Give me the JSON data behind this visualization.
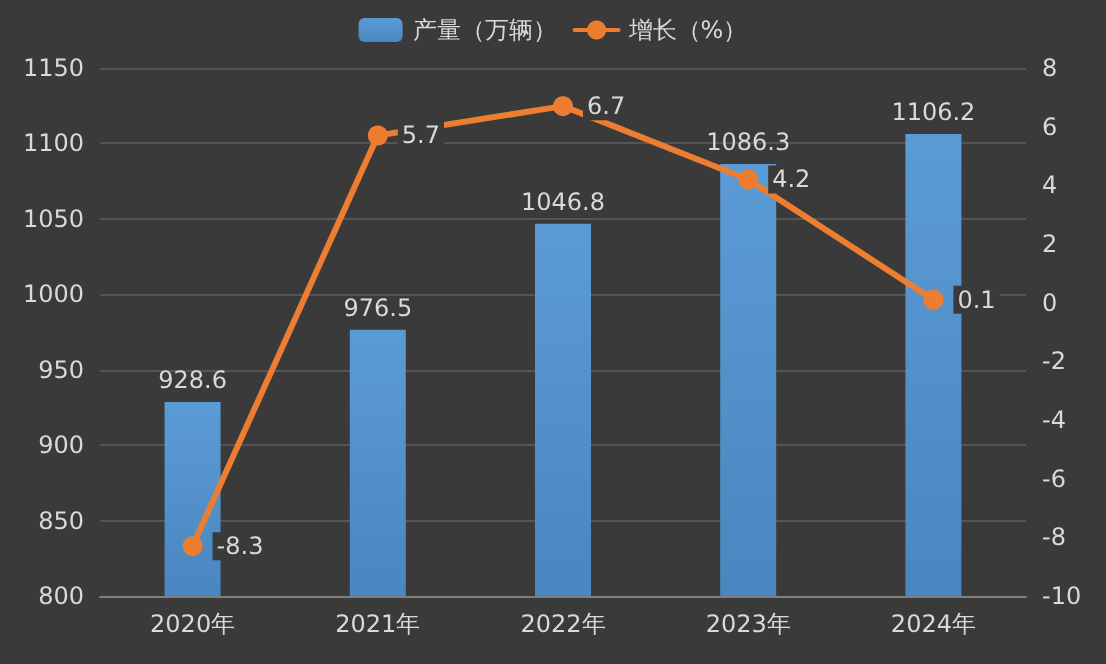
{
  "chart_data": {
    "type": "bar",
    "categories": [
      "2020年",
      "2021年",
      "2022年",
      "2023年",
      "2024年"
    ],
    "series": [
      {
        "name": "产量（万辆）",
        "color": "#5b9bd5",
        "values": [
          928.6,
          976.5,
          1046.8,
          1086.3,
          1106.2
        ]
      },
      {
        "name": "增长（%）",
        "type": "line",
        "axis": "y2",
        "color": "#ed7d31",
        "values": [
          -8.3,
          5.7,
          6.7,
          4.2,
          0.1
        ]
      }
    ],
    "ylim": [
      800,
      1150
    ],
    "yticks": [
      800,
      850,
      900,
      950,
      1000,
      1050,
      1100,
      1150
    ],
    "y2lim": [
      -10,
      8
    ],
    "y2ticks": [
      -10,
      -8,
      -6,
      -4,
      -2,
      0,
      2,
      4,
      6,
      8
    ],
    "data_labels": true,
    "grid": "y",
    "legend": "top",
    "marker": "circle",
    "line_style": "solid"
  }
}
